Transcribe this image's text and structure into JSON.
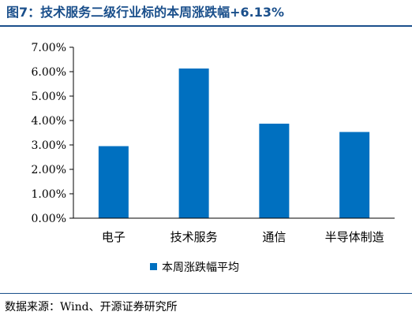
{
  "figure": {
    "title": "图7：技术服务二级行业标的本周涨跌幅+6.13%",
    "source": "数据来源：Wind、开源证券研究所"
  },
  "colors": {
    "bar": "#0070c0",
    "title": "#1a4f8b",
    "axis": "#000000"
  },
  "chart_data": {
    "type": "bar",
    "categories": [
      "电子",
      "技术服务",
      "通信",
      "半导体制造"
    ],
    "series": [
      {
        "name": "本周涨跌幅平均",
        "values": [
          2.95,
          6.13,
          3.87,
          3.53
        ]
      }
    ],
    "yticks": [
      "0.00%",
      "1.00%",
      "2.00%",
      "3.00%",
      "4.00%",
      "5.00%",
      "6.00%",
      "7.00%"
    ],
    "ylim": [
      0,
      7
    ],
    "xlabel": "",
    "ylabel": "",
    "grid": false,
    "legend": "bottom"
  }
}
